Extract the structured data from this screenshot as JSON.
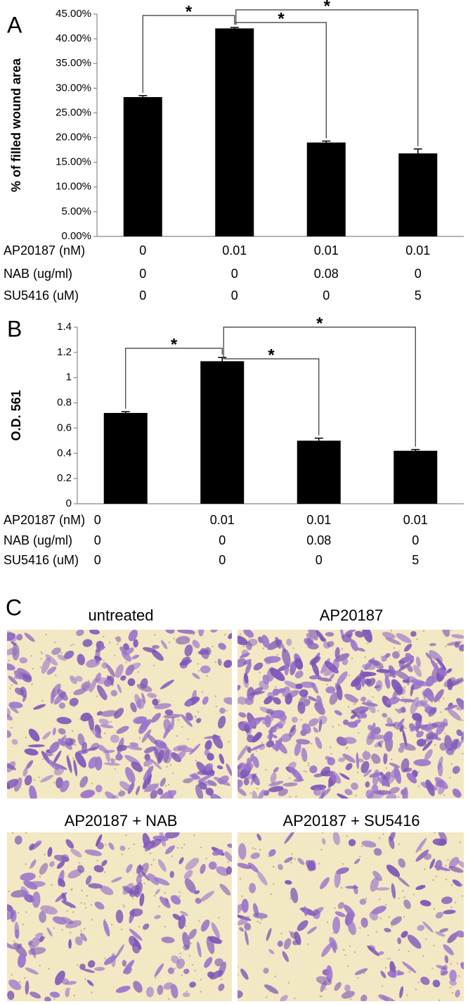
{
  "chart_data": [
    {
      "type": "bar",
      "panel_label": "A",
      "y_label": "% of filled wound area",
      "values": [
        28.2,
        42.1,
        19.0,
        16.8
      ],
      "errors": [
        0.3,
        0.2,
        0.3,
        0.9
      ],
      "color": "#000000",
      "ylim": [
        0,
        45
      ],
      "yticks": [
        {
          "value": 0,
          "label": "0.00%"
        },
        {
          "value": 5,
          "label": "5.00%"
        },
        {
          "value": 10,
          "label": "10.00%"
        },
        {
          "value": 15,
          "label": "15.00%"
        },
        {
          "value": 20,
          "label": "20.00%"
        },
        {
          "value": 25,
          "label": "25.00%"
        },
        {
          "value": 30,
          "label": "30.00%"
        },
        {
          "value": 35,
          "label": "35.00%"
        },
        {
          "value": 40,
          "label": "40.00%"
        },
        {
          "value": 45,
          "label": "45.00%"
        }
      ],
      "category_table": [
        {
          "label": "AP20187 (nM)",
          "values": [
            0,
            0.01,
            0.01,
            0.01
          ]
        },
        {
          "label": "NAB (ug/ml)",
          "values": [
            0,
            0,
            0.08,
            0
          ]
        },
        {
          "label": "SU5416 (uM)",
          "values": [
            0,
            0,
            0,
            5
          ]
        }
      ],
      "annotations": [
        {
          "from": 0,
          "to": 1,
          "text": "*"
        },
        {
          "from": 1,
          "to": 2,
          "text": "*"
        },
        {
          "from": 1,
          "to": 3,
          "text": "*"
        }
      ]
    },
    {
      "type": "bar",
      "panel_label": "B",
      "y_label": "O.D. 561",
      "values": [
        0.72,
        1.13,
        0.5,
        0.42
      ],
      "errors": [
        0.01,
        0.03,
        0.02,
        0.01
      ],
      "color": "#000000",
      "ylim": [
        0,
        1.4
      ],
      "yticks": [
        0,
        0.2,
        0.4,
        0.6,
        0.8,
        1,
        1.2,
        1.4
      ],
      "category_table": [
        {
          "label": "AP20187 (nM)",
          "values": [
            0,
            0.01,
            0.01,
            0.01
          ]
        },
        {
          "label": "NAB (ug/ml)",
          "values": [
            0,
            0,
            0.08,
            0
          ]
        },
        {
          "label": "SU5416 (uM)",
          "values": [
            0,
            0,
            0,
            5
          ]
        }
      ],
      "annotations": [
        {
          "from": 0,
          "to": 1,
          "text": "*"
        },
        {
          "from": 1,
          "to": 2,
          "text": "*"
        },
        {
          "from": 1,
          "to": 3,
          "text": "*"
        }
      ]
    }
  ],
  "panel_c": {
    "label": "C",
    "images": [
      {
        "title": "untreated"
      },
      {
        "title": "AP20187"
      },
      {
        "title": "AP20187 + NAB"
      },
      {
        "title": "AP20187 + SU5416"
      }
    ]
  }
}
